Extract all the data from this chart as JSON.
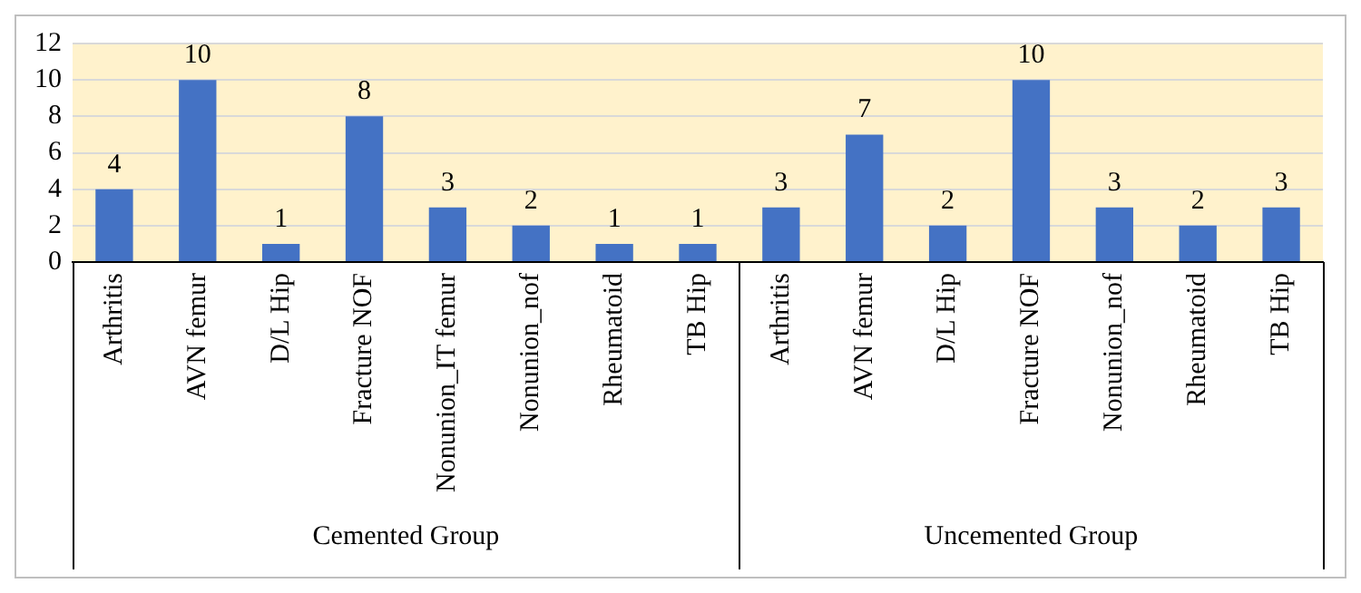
{
  "chart_data": {
    "type": "bar",
    "categories": [
      "Arthritis",
      "AVN femur",
      "D/L Hip",
      "Fracture NOF",
      "Nonunion_IT femur",
      "Nonunion_nof",
      "Rheumatoid",
      "TB Hip",
      "Arthritis",
      "AVN femur",
      "D/L Hip",
      "Fracture NOF",
      "Nonunion_nof",
      "Rheumatoid",
      "TB Hip"
    ],
    "values": [
      4,
      10,
      1,
      8,
      3,
      2,
      1,
      1,
      3,
      7,
      2,
      10,
      3,
      2,
      3
    ],
    "color": "#4472c4",
    "ylim": [
      0,
      12
    ],
    "yticks": [
      0,
      2,
      4,
      6,
      8,
      10,
      12
    ],
    "grid": "y",
    "data_labels": true,
    "legend": false,
    "annotations": [
      "Cemented Group",
      "Uncemented Group"
    ]
  }
}
